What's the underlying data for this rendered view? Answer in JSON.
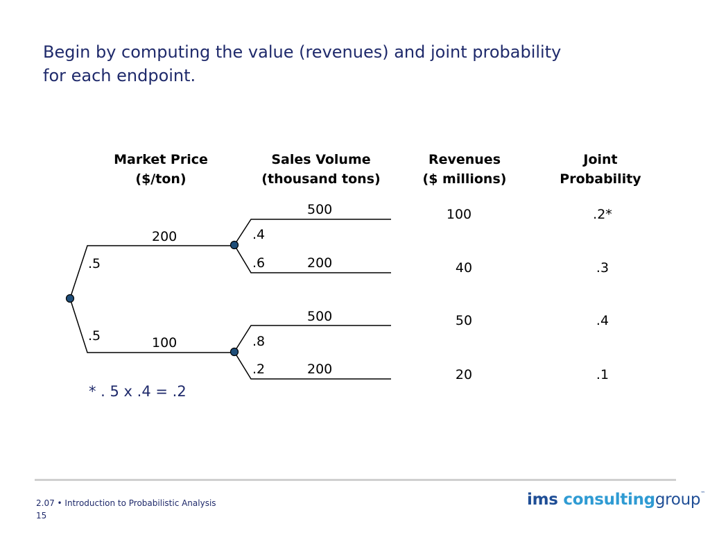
{
  "title": {
    "line1": "Begin by computing the value (revenues) and joint probability",
    "line2": "for each endpoint."
  },
  "headers": {
    "market_price": [
      "Market Price",
      "($/ton)"
    ],
    "sales_volume": [
      "Sales Volume",
      "(thousand tons)"
    ],
    "revenues": [
      "Revenues",
      "($ millions)"
    ],
    "joint_probability": [
      "Joint",
      "Probability"
    ]
  },
  "tree": {
    "price_branches": [
      {
        "probability": ".5",
        "price": "200"
      },
      {
        "probability": ".5",
        "price": "100"
      }
    ],
    "volume_branches": [
      {
        "probability": ".4",
        "volume": "500",
        "revenue": "100",
        "joint": ".2*"
      },
      {
        "probability": ".6",
        "volume": "200",
        "revenue": "40",
        "joint": ".3"
      },
      {
        "probability": ".8",
        "volume": "500",
        "revenue": "50",
        "joint": ".4"
      },
      {
        "probability": ".2",
        "volume": "200",
        "revenue": "20",
        "joint": ".1"
      }
    ],
    "node_color": "#1f4e79"
  },
  "footnote": "* . 5 x .4 = .2",
  "footer": {
    "course": "2.07 • Introduction to Probabilistic Analysis",
    "page": "15"
  },
  "logo": {
    "word1": "ims",
    "word2": "consulting",
    "word3": "group",
    "tm": "™",
    "colors": {
      "dark": "#1f4e96",
      "light": "#2f9bd3"
    }
  }
}
